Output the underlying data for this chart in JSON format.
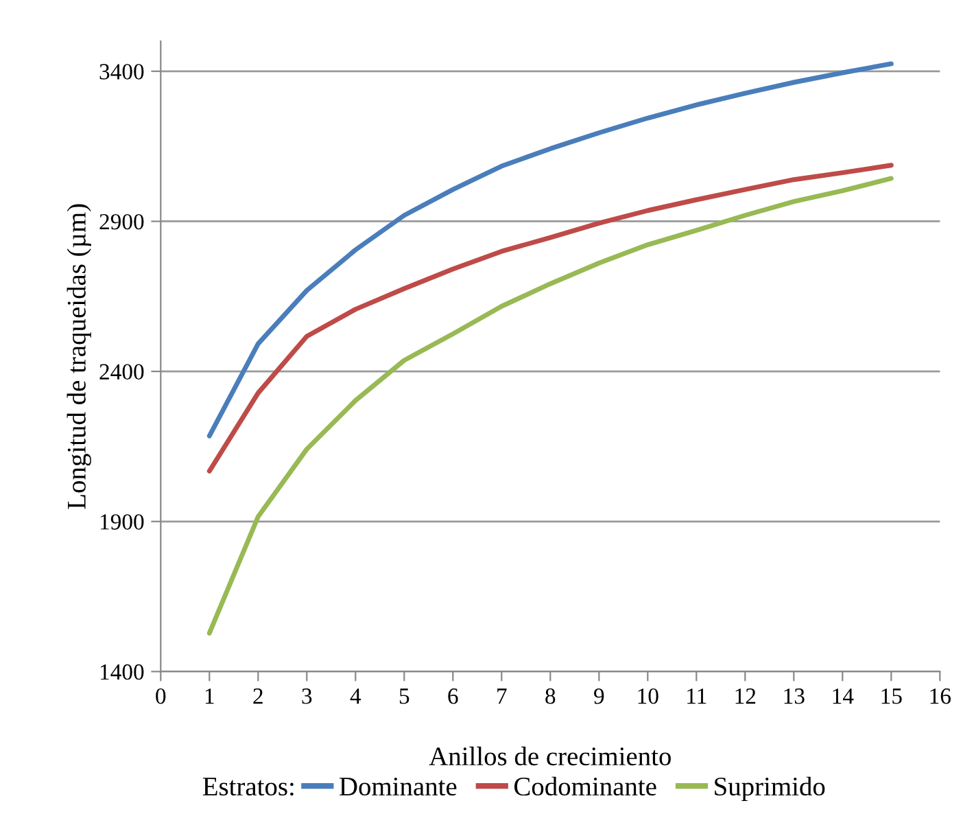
{
  "chart_data": {
    "type": "line",
    "xlabel": "Anillos de crecimiento",
    "ylabel": "Longitud de traqueidas (µm)",
    "legend_title": "Estratos:",
    "legend": "bottom",
    "grid": "y",
    "marker": "none",
    "line_style": "solid",
    "x": [
      1,
      2,
      3,
      4,
      5,
      6,
      7,
      8,
      9,
      10,
      11,
      12,
      13,
      14,
      15
    ],
    "xlim": [
      0,
      16
    ],
    "xticks": [
      0,
      1,
      2,
      3,
      4,
      5,
      6,
      7,
      8,
      9,
      10,
      11,
      12,
      13,
      14,
      15,
      16
    ],
    "ylim": [
      1400,
      3500
    ],
    "yticks": [
      1400,
      1900,
      2400,
      2900,
      3400
    ],
    "series": [
      {
        "name": "Dominante",
        "color": "#4a7ebb",
        "values": [
          2185,
          2492,
          2670,
          2805,
          2920,
          3006,
          3084,
          3142,
          3195,
          3244,
          3288,
          3327,
          3363,
          3395,
          3425
        ]
      },
      {
        "name": "Codominante",
        "color": "#be4b48",
        "values": [
          2068,
          2328,
          2517,
          2607,
          2676,
          2741,
          2800,
          2846,
          2894,
          2936,
          2972,
          3006,
          3039,
          3062,
          3087
        ]
      },
      {
        "name": "Suprimido",
        "color": "#98b954",
        "values": [
          1528,
          1916,
          2141,
          2303,
          2437,
          2525,
          2617,
          2692,
          2761,
          2822,
          2870,
          2920,
          2966,
          3002,
          3043
        ]
      }
    ]
  }
}
